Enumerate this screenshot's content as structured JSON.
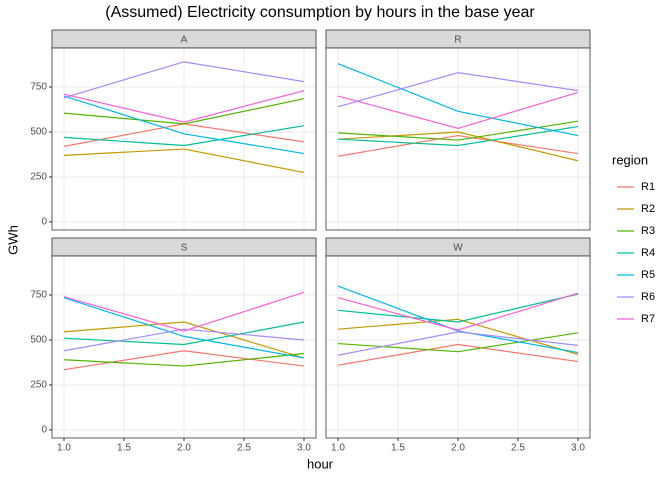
{
  "chart_data": {
    "type": "line",
    "title": "(Assumed) Electricity consumption by hours in the base year",
    "x_label": "hour",
    "y_label": "GWh",
    "legend_title": "region",
    "x": [
      1,
      2,
      3
    ],
    "xlim": [
      0.9,
      3.1
    ],
    "xticks": [
      {
        "value": 1,
        "label": "1.0"
      },
      {
        "value": 1.5,
        "label": "1.5"
      },
      {
        "value": 2,
        "label": "2.0"
      },
      {
        "value": 2.5,
        "label": "2.5"
      },
      {
        "value": 3,
        "label": "3.0"
      }
    ],
    "ylim": [
      -45,
      967
    ],
    "yticks": [
      0,
      250,
      500,
      750
    ],
    "grid": true,
    "legend": [
      {
        "name": "R1",
        "color": "#F8766D"
      },
      {
        "name": "R2",
        "color": "#C49A00"
      },
      {
        "name": "R3",
        "color": "#53B400"
      },
      {
        "name": "R4",
        "color": "#00C094"
      },
      {
        "name": "R5",
        "color": "#00B6EB"
      },
      {
        "name": "R6",
        "color": "#A58AFF"
      },
      {
        "name": "R7",
        "color": "#FB61D7"
      }
    ],
    "panels": [
      {
        "label": "A",
        "values": [
          [
            420,
            545,
            445
          ],
          [
            370,
            405,
            275
          ],
          [
            605,
            545,
            685
          ],
          [
            470,
            425,
            535
          ],
          [
            700,
            490,
            380
          ],
          [
            690,
            890,
            780
          ],
          [
            710,
            555,
            730
          ]
        ]
      },
      {
        "label": "R",
        "values": [
          [
            365,
            480,
            380
          ],
          [
            460,
            500,
            340
          ],
          [
            495,
            455,
            560
          ],
          [
            460,
            425,
            530
          ],
          [
            880,
            615,
            480
          ],
          [
            640,
            830,
            730
          ],
          [
            700,
            520,
            720
          ]
        ]
      },
      {
        "label": "S",
        "values": [
          [
            335,
            440,
            355
          ],
          [
            545,
            600,
            400
          ],
          [
            390,
            355,
            425
          ],
          [
            510,
            475,
            600
          ],
          [
            735,
            520,
            400
          ],
          [
            440,
            560,
            500
          ],
          [
            740,
            550,
            765
          ]
        ]
      },
      {
        "label": "W",
        "values": [
          [
            360,
            475,
            380
          ],
          [
            560,
            615,
            420
          ],
          [
            480,
            435,
            540
          ],
          [
            665,
            600,
            755
          ],
          [
            800,
            550,
            430
          ],
          [
            415,
            545,
            470
          ],
          [
            735,
            555,
            760
          ]
        ]
      }
    ]
  }
}
